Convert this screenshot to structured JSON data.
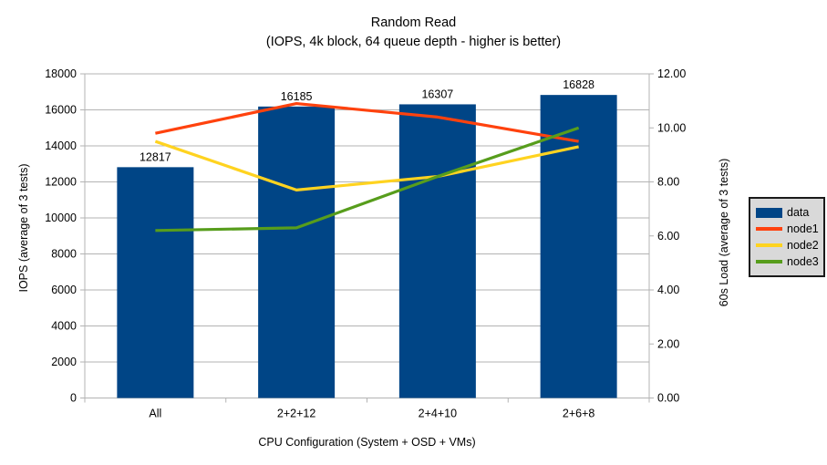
{
  "title": {
    "line1": "Random Read",
    "line2": "(IOPS, 4k block, 64 queue depth - higher is better)"
  },
  "chart_data": {
    "type": "bar+line combo",
    "categories": [
      "All",
      "2+2+12",
      "2+4+10",
      "2+6+8"
    ],
    "bar_series": {
      "name": "data",
      "color": "#004586",
      "axis": "left",
      "values": [
        12817,
        16185,
        16307,
        16828
      ],
      "value_labels": [
        "12817",
        "16185",
        "16307",
        "16828"
      ]
    },
    "line_series": [
      {
        "name": "node1",
        "color": "#ff420e",
        "axis": "right",
        "values": [
          9.8,
          10.9,
          10.4,
          9.5
        ]
      },
      {
        "name": "node2",
        "color": "#ffd320",
        "axis": "right",
        "values": [
          9.5,
          7.7,
          8.2,
          9.3
        ]
      },
      {
        "name": "node3",
        "color": "#579d1c",
        "axis": "right",
        "values": [
          6.2,
          6.3,
          8.2,
          10.0
        ]
      }
    ],
    "left_axis": {
      "title": "IOPS (average of 3 tests)",
      "min": 0,
      "max": 18000,
      "step": 2000,
      "tick_labels": [
        "0",
        "2000",
        "4000",
        "6000",
        "8000",
        "10000",
        "12000",
        "14000",
        "16000",
        "18000"
      ]
    },
    "right_axis": {
      "title": "60s Load (average of 3 tests)",
      "min": 0,
      "max": 12,
      "step": 2,
      "tick_labels": [
        "0.00",
        "2.00",
        "4.00",
        "6.00",
        "8.00",
        "10.00",
        "12.00"
      ]
    },
    "x_axis": {
      "title": "CPU Configuration (System + OSD + VMs)"
    },
    "legend": {
      "position": "right",
      "items": [
        {
          "label": "data",
          "swatch": "box",
          "color": "#004586"
        },
        {
          "label": "node1",
          "swatch": "line",
          "color": "#ff420e"
        },
        {
          "label": "node2",
          "swatch": "line",
          "color": "#ffd320"
        },
        {
          "label": "node3",
          "swatch": "line",
          "color": "#579d1c"
        }
      ]
    },
    "grid": {
      "horizontal": true,
      "vertical": false,
      "color": "#b3b3b3"
    },
    "axis_line_color": "#b3b3b3",
    "text_color": "#000000",
    "background": "#ffffff"
  }
}
